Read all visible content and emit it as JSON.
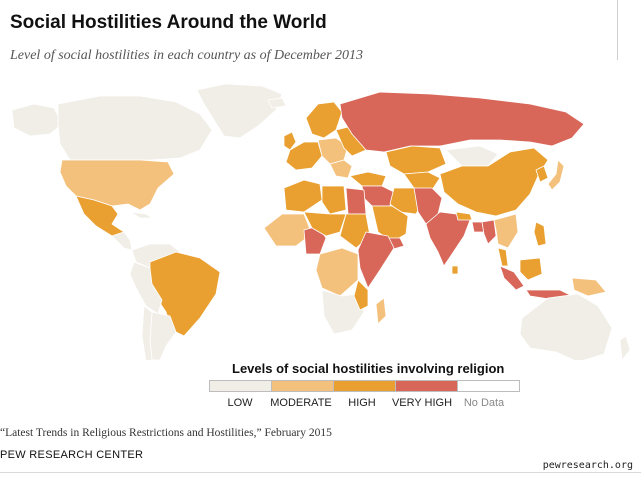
{
  "header": {
    "title": "Social Hostilities Around the World",
    "subtitle": "Level of social hostilities in each country as of December 2013"
  },
  "legend": {
    "title": "Levels of social hostilities involving religion",
    "items": [
      {
        "label": "LOW",
        "color": "#f0eee7"
      },
      {
        "label": "MODERATE",
        "color": "#f4c17d"
      },
      {
        "label": "HIGH",
        "color": "#e9a030"
      },
      {
        "label": "VERY HIGH",
        "color": "#d8675a"
      },
      {
        "label": "No Data",
        "color": "#ffffff"
      }
    ]
  },
  "footer": {
    "source": "“Latest Trends in Religious Restrictions and Hostilities,” February 2015",
    "org": "PEW RESEARCH CENTER",
    "url": "pewresearch.org"
  },
  "colors": {
    "low": "#f0eee7",
    "moderate": "#f4c17d",
    "high": "#e9a030",
    "very_high": "#d8675a",
    "no_data": "#ffffff",
    "border": "#ffffff"
  }
}
